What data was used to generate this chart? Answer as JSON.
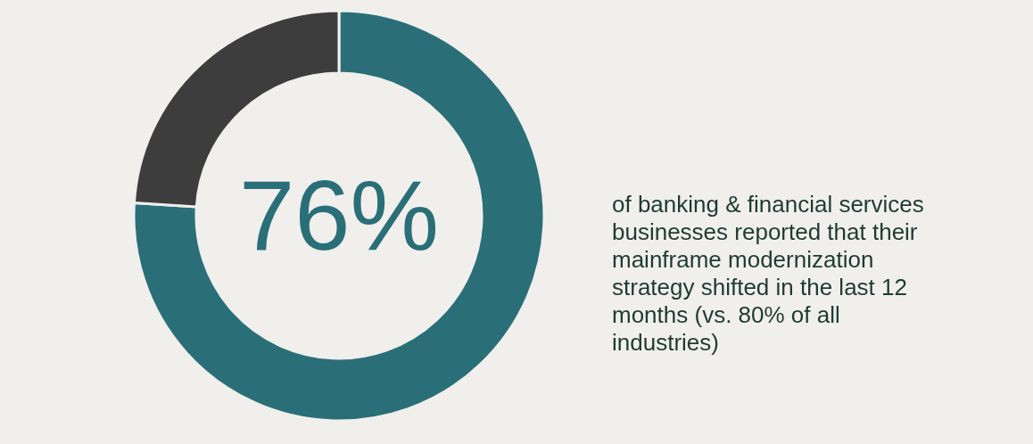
{
  "chart_data": {
    "type": "donut",
    "categories": [
      null,
      null
    ],
    "values": [
      76,
      24
    ],
    "colors": [
      "#2a6f78",
      "#3d3d3d"
    ],
    "value_labels": [
      "76%",
      null
    ],
    "annotations": [
      "of banking & financial services businesses reported that their mainframe modernization strategy shifted in the last 12 months (vs. 80% of all industries)"
    ]
  }
}
